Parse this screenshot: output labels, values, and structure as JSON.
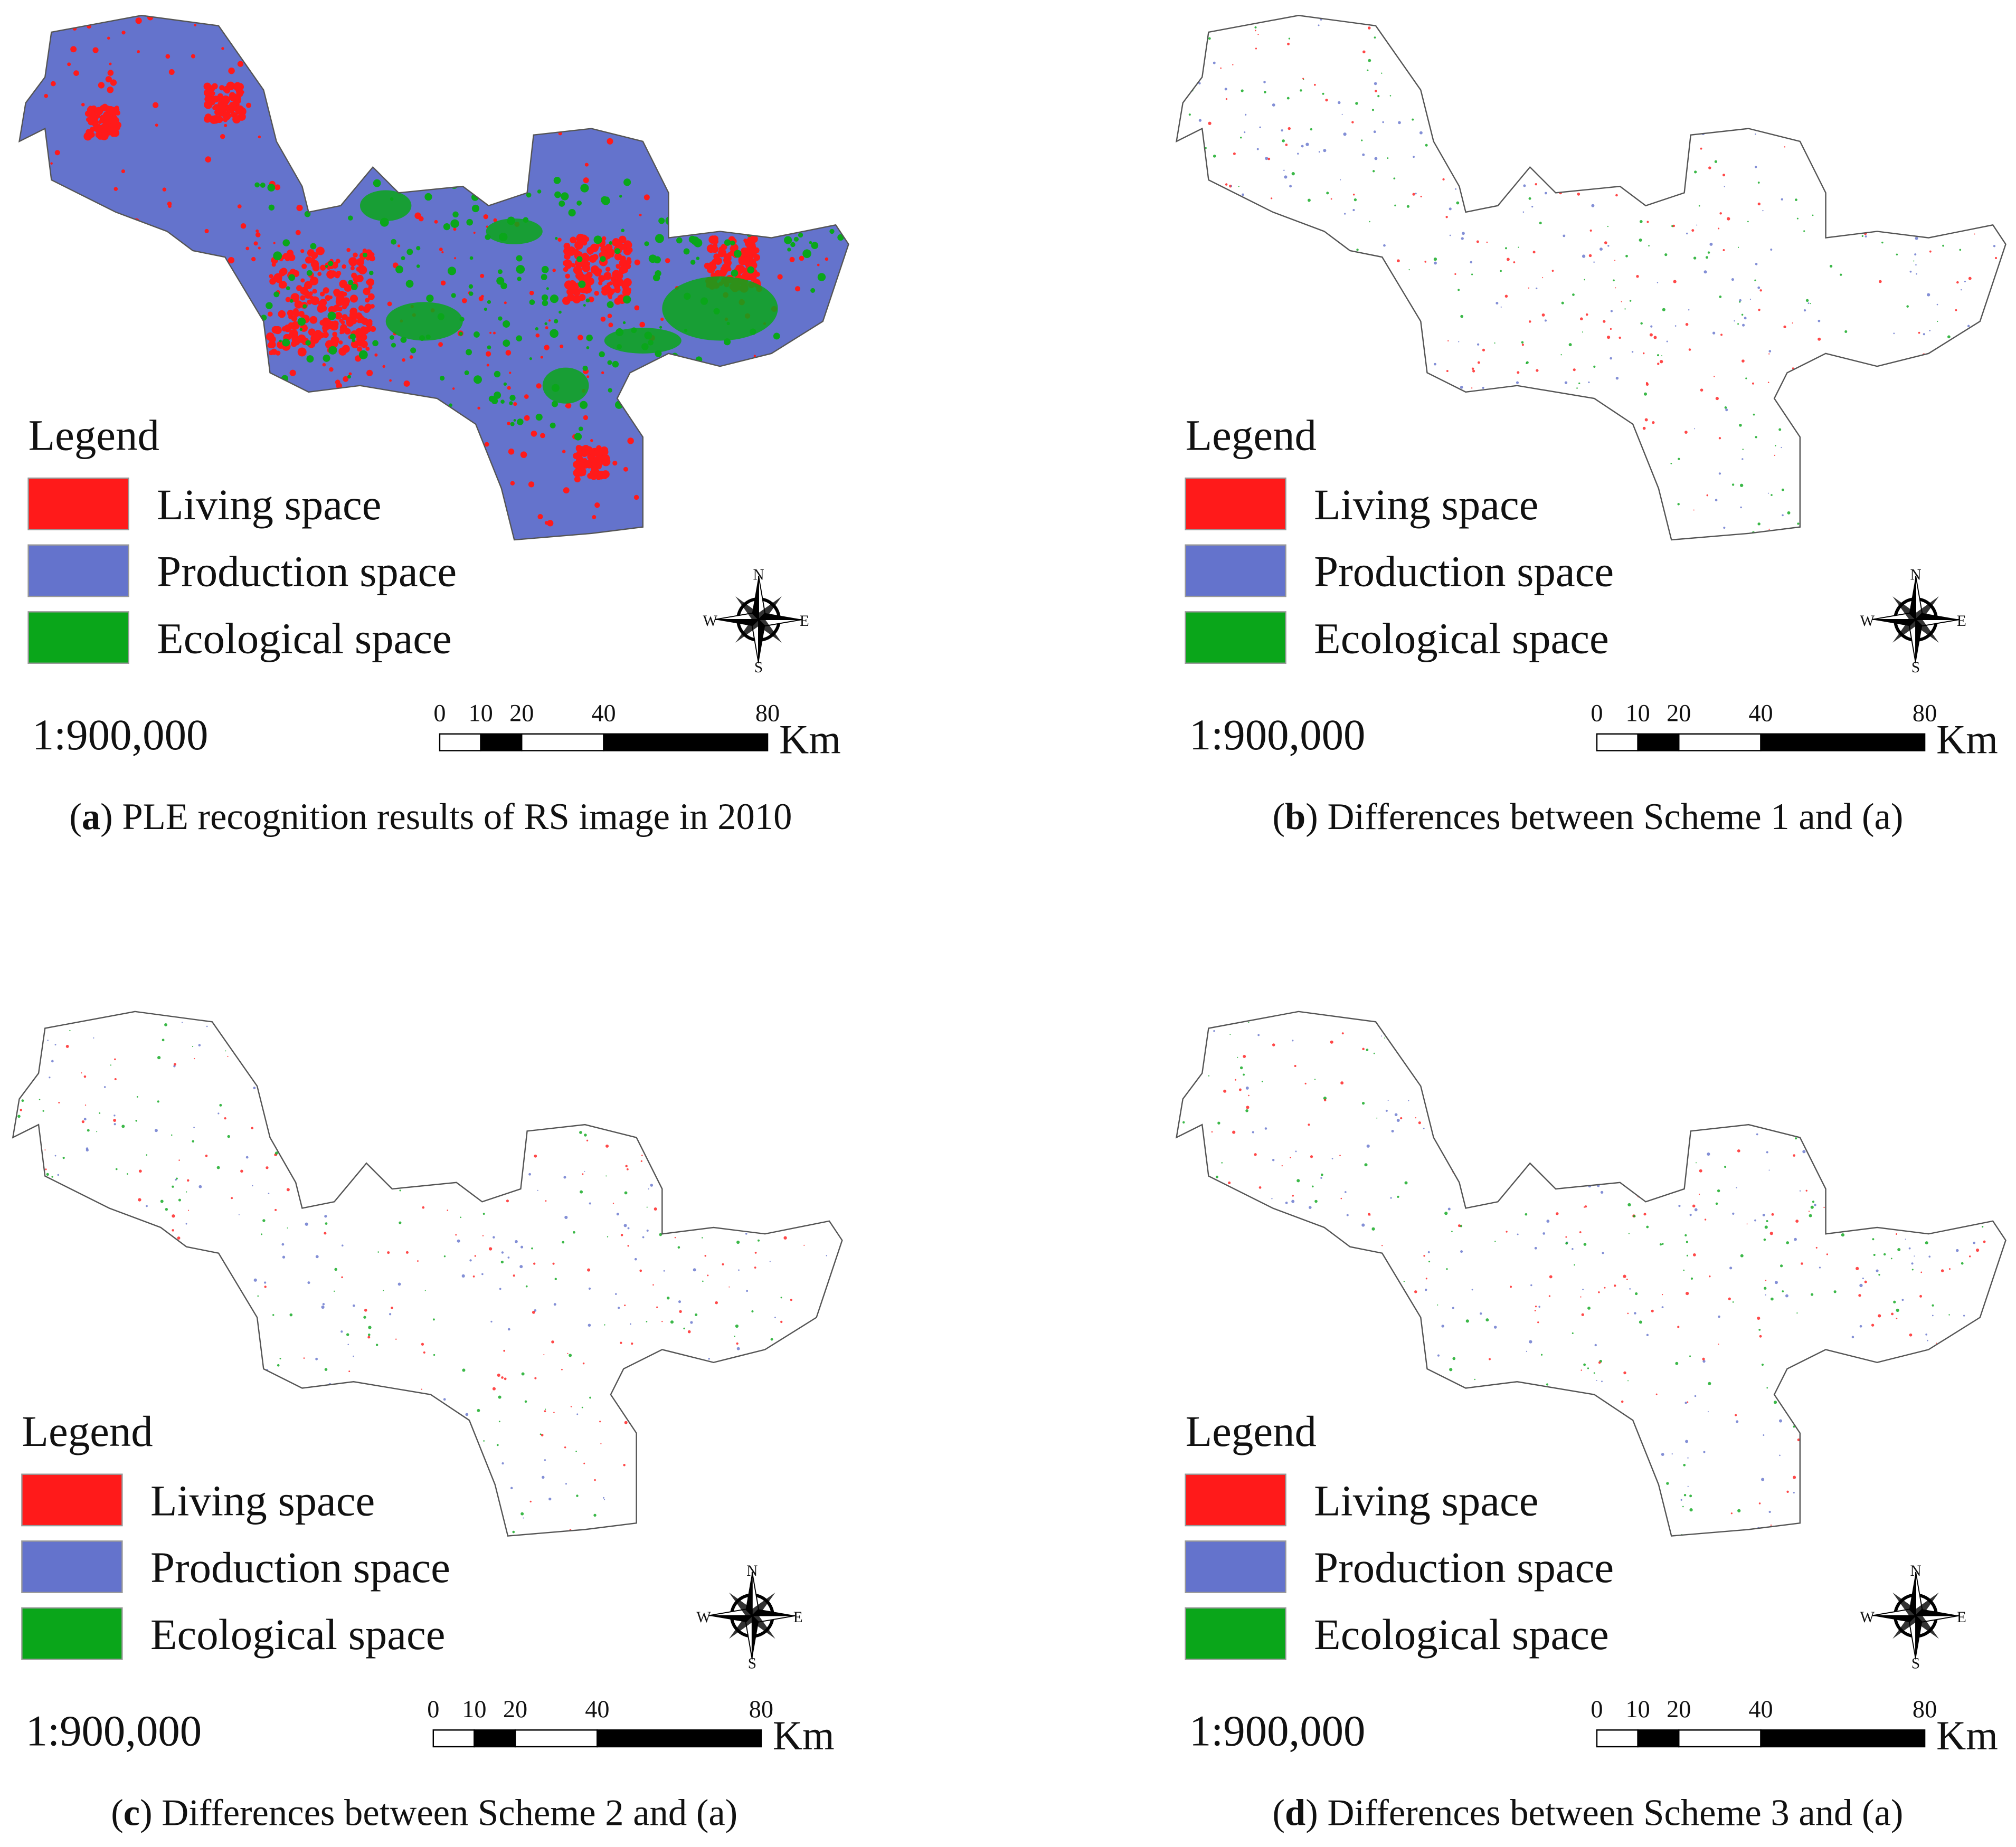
{
  "panels": [
    {
      "caption": [
        "(",
        "a",
        ") PLE recognition results of RS image in 2010"
      ],
      "legend_title": "Legend",
      "legend": [
        {
          "label": "Living space",
          "color": "#ff1a1a"
        },
        {
          "label": "Production space",
          "color": "#6473cc"
        },
        {
          "label": "Ecological space",
          "color": "#0aa61a"
        }
      ],
      "scale": "1:900,000",
      "scale_ticks": [
        0,
        10,
        20,
        40,
        80
      ],
      "scale_unit": "Km",
      "compass": [
        "N",
        "E",
        "S",
        "W"
      ]
    },
    {
      "caption": [
        "(",
        "b",
        ") Differences between Scheme 1 and (a)"
      ],
      "legend_title": "Legend",
      "legend": [
        {
          "label": "Living space",
          "color": "#ff1a1a"
        },
        {
          "label": "Production space",
          "color": "#6473cc"
        },
        {
          "label": "Ecological space",
          "color": "#0aa61a"
        }
      ],
      "scale": "1:900,000",
      "scale_ticks": [
        0,
        10,
        20,
        40,
        80
      ],
      "scale_unit": "Km",
      "compass": [
        "N",
        "E",
        "S",
        "W"
      ]
    },
    {
      "caption": [
        "(",
        "c",
        ") Differences between Scheme 2 and (a)"
      ],
      "legend_title": "Legend",
      "legend": [
        {
          "label": "Living space",
          "color": "#ff1a1a"
        },
        {
          "label": "Production space",
          "color": "#6473cc"
        },
        {
          "label": "Ecological space",
          "color": "#0aa61a"
        }
      ],
      "scale": "1:900,000",
      "scale_ticks": [
        0,
        10,
        20,
        40,
        80
      ],
      "scale_unit": "Km",
      "compass": [
        "N",
        "E",
        "S",
        "W"
      ]
    },
    {
      "caption": [
        "(",
        "d",
        ") Differences between Scheme 3 and (a)"
      ],
      "legend_title": "Legend",
      "legend": [
        {
          "label": "Living space",
          "color": "#ff1a1a"
        },
        {
          "label": "Production space",
          "color": "#6473cc"
        },
        {
          "label": "Ecological space",
          "color": "#0aa61a"
        }
      ],
      "scale": "1:900,000",
      "scale_ticks": [
        0,
        10,
        20,
        40,
        80
      ],
      "scale_unit": "Km",
      "compass": [
        "N",
        "E",
        "S",
        "W"
      ]
    }
  ]
}
